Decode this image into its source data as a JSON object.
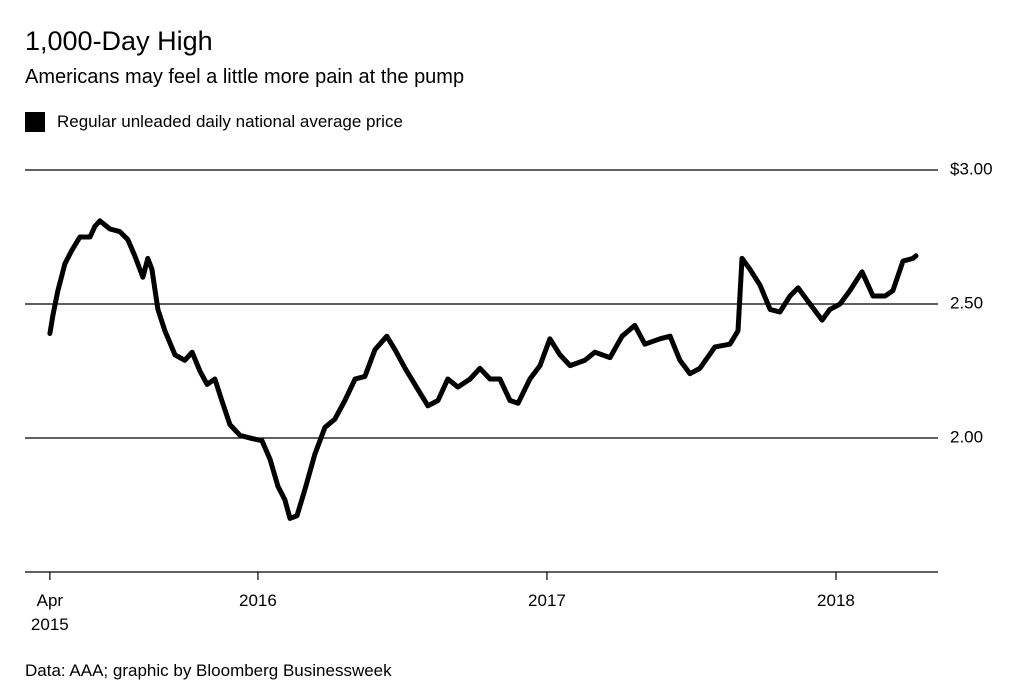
{
  "chart_data": {
    "type": "line",
    "title": "1,000-Day High",
    "subtitle": "Americans may feel a little more pain at the pump",
    "source": "Data: AAA; graphic by Bloomberg Businessweek",
    "x": [
      2015.28,
      2015.291,
      2015.308,
      2015.332,
      2015.356,
      2015.384,
      2015.419,
      2015.436,
      2015.453,
      2015.488,
      2015.522,
      2015.55,
      2015.574,
      2015.602,
      2015.619,
      2015.633,
      2015.654,
      2015.678,
      2015.713,
      2015.747,
      2015.772,
      2015.799,
      2015.824,
      2015.851,
      2015.875,
      2015.903,
      2015.938,
      2015.972,
      2016.014,
      2016.042,
      2016.069,
      2016.093,
      2016.111,
      2016.135,
      2016.163,
      2016.197,
      2016.232,
      2016.266,
      2016.301,
      2016.336,
      2016.37,
      2016.405,
      2016.446,
      2016.474,
      2016.509,
      2016.554,
      2016.588,
      2016.623,
      2016.657,
      2016.692,
      2016.734,
      2016.768,
      2016.803,
      2016.837,
      2016.872,
      2016.9,
      2016.941,
      2016.976,
      2017.01,
      2017.045,
      2017.08,
      2017.131,
      2017.166,
      2017.218,
      2017.26,
      2017.304,
      2017.339,
      2017.391,
      2017.426,
      2017.46,
      2017.495,
      2017.529,
      2017.581,
      2017.633,
      2017.661,
      2017.675,
      2017.702,
      2017.737,
      2017.772,
      2017.806,
      2017.841,
      2017.869,
      2017.91,
      2017.952,
      2017.979,
      2018.014,
      2018.048,
      2018.09,
      2018.128,
      2018.17,
      2018.197,
      2018.232,
      2018.266,
      2018.277
    ],
    "series": [
      {
        "name": "Regular unleaded daily national average price",
        "color": "#000000",
        "values": [
          2.39,
          2.46,
          2.55,
          2.65,
          2.7,
          2.75,
          2.75,
          2.79,
          2.81,
          2.78,
          2.77,
          2.74,
          2.68,
          2.6,
          2.67,
          2.63,
          2.48,
          2.4,
          2.31,
          2.29,
          2.32,
          2.25,
          2.2,
          2.22,
          2.14,
          2.05,
          2.01,
          2.0,
          1.99,
          1.92,
          1.82,
          1.77,
          1.7,
          1.71,
          1.81,
          1.94,
          2.04,
          2.07,
          2.14,
          2.22,
          2.23,
          2.33,
          2.38,
          2.33,
          2.26,
          2.18,
          2.12,
          2.14,
          2.22,
          2.19,
          2.22,
          2.26,
          2.22,
          2.22,
          2.14,
          2.13,
          2.22,
          2.27,
          2.37,
          2.31,
          2.27,
          2.29,
          2.32,
          2.3,
          2.38,
          2.42,
          2.35,
          2.37,
          2.38,
          2.29,
          2.24,
          2.26,
          2.34,
          2.35,
          2.4,
          2.67,
          2.63,
          2.57,
          2.48,
          2.47,
          2.53,
          2.56,
          2.5,
          2.44,
          2.48,
          2.5,
          2.55,
          2.62,
          2.53,
          2.53,
          2.55,
          2.66,
          2.67,
          2.68
        ]
      }
    ],
    "xlim": [
      2015.194,
      2018.353
    ],
    "xticks": [
      {
        "value": 2015.28,
        "label": "Apr 2015"
      },
      2016,
      2017,
      2018
    ],
    "ylim": [
      1.5,
      3.0
    ],
    "yticks": [
      {
        "value": 2,
        "label": "2.00"
      },
      {
        "value": 2.5,
        "label": "2.50"
      },
      {
        "value": 3,
        "label": "$3.00"
      }
    ],
    "grid": true
  }
}
